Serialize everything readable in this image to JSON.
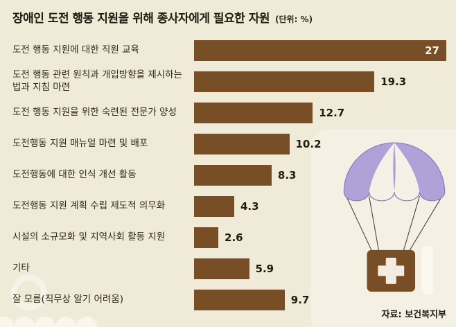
{
  "chart_data": {
    "type": "bar",
    "orientation": "horizontal",
    "title": "장애인 도전 행동 지원을 위해 종사자에게 필요한 자원",
    "unit_label": "(단위: %)",
    "categories": [
      "도전 행동 지원에 대한 직원 교육",
      "도전 행동 관련 원칙과 개입방향을 제시하는 법과 지침 마련",
      "도전 행동 지원을 위한 숙련된 전문가 양성",
      "도전행동 지원 매뉴얼 마련 및 배포",
      "도전행동에 대한 인식 개선 활동",
      "도전행동 지원 계획 수립 제도적 의무화",
      "시설의 소규모화 및 지역사회 활동 지원",
      "기타",
      "잘 모름(직무상 알기 어려움)"
    ],
    "values": [
      27,
      19.3,
      12.7,
      10.2,
      8.3,
      4.3,
      2.6,
      5.9,
      9.7
    ],
    "value_labels": [
      "27",
      "19.3",
      "12.7",
      "10.2",
      "8.3",
      "4.3",
      "2.6",
      "5.9",
      "9.7"
    ],
    "xlim": [
      0,
      27
    ],
    "grid": false,
    "legend": "none",
    "bar_color": "#784e26",
    "value_label_color": "#211b12",
    "max_value_label_inside": true
  },
  "source": {
    "label": "자료: 보건복지부"
  },
  "colors": {
    "background": "#f0ebd8"
  },
  "illustration": {
    "name": "parachute-with-first-aid-box",
    "canopy_color": "#b2a0d9",
    "canopy_outline": "#8d7ab8",
    "panel_color": "#f5f1e6",
    "string_color": "#4c463e",
    "box_color": "#784e26",
    "cross_color": "#f2ede0",
    "pill_color": "#fbf8ef"
  }
}
